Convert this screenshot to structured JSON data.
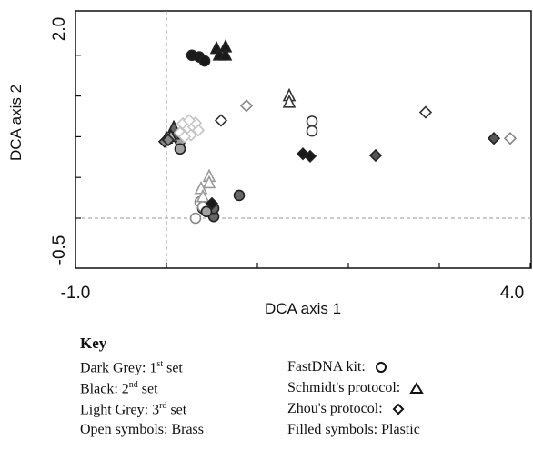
{
  "chart_data": {
    "type": "scatter",
    "xlabel": "DCA axis 1",
    "ylabel": "DCA axis 2",
    "xlim": [
      -1.0,
      4.0
    ],
    "ylim": [
      -0.5,
      2.0
    ],
    "x_tick_labels": [
      "-1.0",
      "4.0"
    ],
    "y_tick_labels": [
      "-0.5",
      "2.0"
    ],
    "reference_lines": {
      "x": 0.0,
      "y": 0.0
    },
    "grid": false,
    "series": [
      {
        "name": "FastDNA kit - 1st set (dark grey) - Brass",
        "marker": "circle",
        "fill": "open",
        "shade": "#333333",
        "points": [
          [
            1.6,
            1.19
          ],
          [
            1.6,
            1.07
          ]
        ]
      },
      {
        "name": "FastDNA kit - 1st set (dark grey) - Plastic",
        "marker": "circle",
        "fill": "filled",
        "shade": "#666666",
        "points": [
          [
            0.52,
            0.02
          ],
          [
            0.52,
            0.12
          ],
          [
            0.8,
            0.28
          ]
        ]
      },
      {
        "name": "FastDNA kit - 2nd set (black) - Plastic",
        "marker": "circle",
        "fill": "filled",
        "shade": "#1a1a1a",
        "points": [
          [
            0.36,
            1.98
          ],
          [
            0.42,
            1.93
          ],
          [
            0.28,
            2.0
          ],
          [
            0.4,
            0.12
          ]
        ]
      },
      {
        "name": "FastDNA kit - 3rd set (light grey) - Brass",
        "marker": "circle",
        "fill": "open",
        "shade": "#888888",
        "points": [
          [
            0.32,
            0.0
          ],
          [
            0.37,
            0.2
          ],
          [
            0.4,
            0.14
          ]
        ]
      },
      {
        "name": "FastDNA kit - 3rd set (light grey) - Plastic",
        "marker": "circle",
        "fill": "filled",
        "shade": "#a0a0a0",
        "points": [
          [
            0.15,
            0.95
          ],
          [
            0.15,
            0.85
          ],
          [
            0.44,
            0.08
          ]
        ]
      },
      {
        "name": "Schmidt's protocol - 1st set (dark grey) - Brass",
        "marker": "triangle",
        "fill": "open",
        "shade": "#333333",
        "points": [
          [
            1.35,
            1.5
          ],
          [
            1.35,
            1.42
          ]
        ]
      },
      {
        "name": "Schmidt's protocol - 1st set (dark grey) - Plastic",
        "marker": "triangle",
        "fill": "filled",
        "shade": "#666666",
        "points": [
          [
            0.08,
            1.03
          ],
          [
            0.08,
            1.11
          ]
        ]
      },
      {
        "name": "Schmidt's protocol - 2nd set (black) - Plastic",
        "marker": "triangle",
        "fill": "filled",
        "shade": "#1a1a1a",
        "points": [
          [
            0.55,
            2.08
          ],
          [
            0.65,
            2.1
          ],
          [
            0.58,
            2.0
          ],
          [
            0.65,
            2.0
          ]
        ]
      },
      {
        "name": "Schmidt's protocol - 3rd set (light grey) - Brass",
        "marker": "triangle",
        "fill": "open",
        "shade": "#999999",
        "points": [
          [
            0.47,
            0.51
          ],
          [
            0.47,
            0.43
          ],
          [
            0.38,
            0.36
          ],
          [
            0.4,
            0.26
          ]
        ]
      },
      {
        "name": "Schmidt's protocol - 3rd set (light grey) - Plastic",
        "marker": "triangle",
        "fill": "filled",
        "shade": "#b5b5b5",
        "points": [
          [
            0.0,
            0.98
          ],
          [
            0.05,
            1.0
          ]
        ]
      },
      {
        "name": "Zhou's protocol - 1st set (dark grey) - Brass",
        "marker": "diamond",
        "fill": "open",
        "shade": "#333333",
        "points": [
          [
            0.6,
            1.2
          ],
          [
            2.85,
            1.3
          ]
        ]
      },
      {
        "name": "Zhou's protocol - 1st set (dark grey) - Plastic",
        "marker": "diamond",
        "fill": "filled",
        "shade": "#555555",
        "points": [
          [
            3.6,
            0.98
          ],
          [
            2.3,
            0.77
          ]
        ]
      },
      {
        "name": "Zhou's protocol - 2nd set (black) - Plastic",
        "marker": "diamond",
        "fill": "filled",
        "shade": "#1a1a1a",
        "points": [
          [
            1.5,
            0.79
          ],
          [
            1.58,
            0.76
          ],
          [
            0.5,
            0.18
          ]
        ]
      },
      {
        "name": "Zhou's protocol - 3rd set (light grey) - Brass",
        "marker": "diamond",
        "fill": "open",
        "shade": "#888888",
        "points": [
          [
            0.88,
            1.38
          ],
          [
            3.78,
            0.98
          ]
        ]
      },
      {
        "name": "Zhou's protocol - 3rd set (light grey) - Brass (cluster)",
        "marker": "diamond",
        "fill": "open",
        "shade": "#c4c4c4",
        "points": [
          [
            0.15,
            1.05
          ],
          [
            0.18,
            1.16
          ],
          [
            0.24,
            1.1
          ],
          [
            0.27,
            1.02
          ],
          [
            0.3,
            1.12
          ],
          [
            0.2,
            1.0
          ],
          [
            0.35,
            1.08
          ],
          [
            0.32,
            1.17
          ],
          [
            0.25,
            1.2
          ]
        ]
      },
      {
        "name": "Zhou's protocol - 3rd set (light grey) - Plastic",
        "marker": "diamond",
        "fill": "filled",
        "shade": "#888888",
        "points": [
          [
            -0.02,
            0.94
          ],
          [
            0.02,
            0.96
          ]
        ]
      }
    ]
  },
  "key": {
    "title": "Key",
    "dark_grey": {
      "label": "Dark Grey: 1",
      "sup": "st",
      "tail": " set"
    },
    "black": {
      "label": "Black: 2",
      "sup": "nd",
      "tail": " set"
    },
    "light_grey": {
      "label": "Light Grey: 3",
      "sup": "rd",
      "tail": " set"
    },
    "open_symbols": "Open symbols: Brass",
    "fastdna": "FastDNA kit:",
    "schmidt": "Schmidt's protocol:",
    "zhou": "Zhou's protocol:",
    "filled_symbols": "Filled symbols: Plastic",
    "icons": {
      "fastdna": "circle-icon",
      "schmidt": "triangle-icon",
      "zhou": "diamond-icon"
    }
  }
}
